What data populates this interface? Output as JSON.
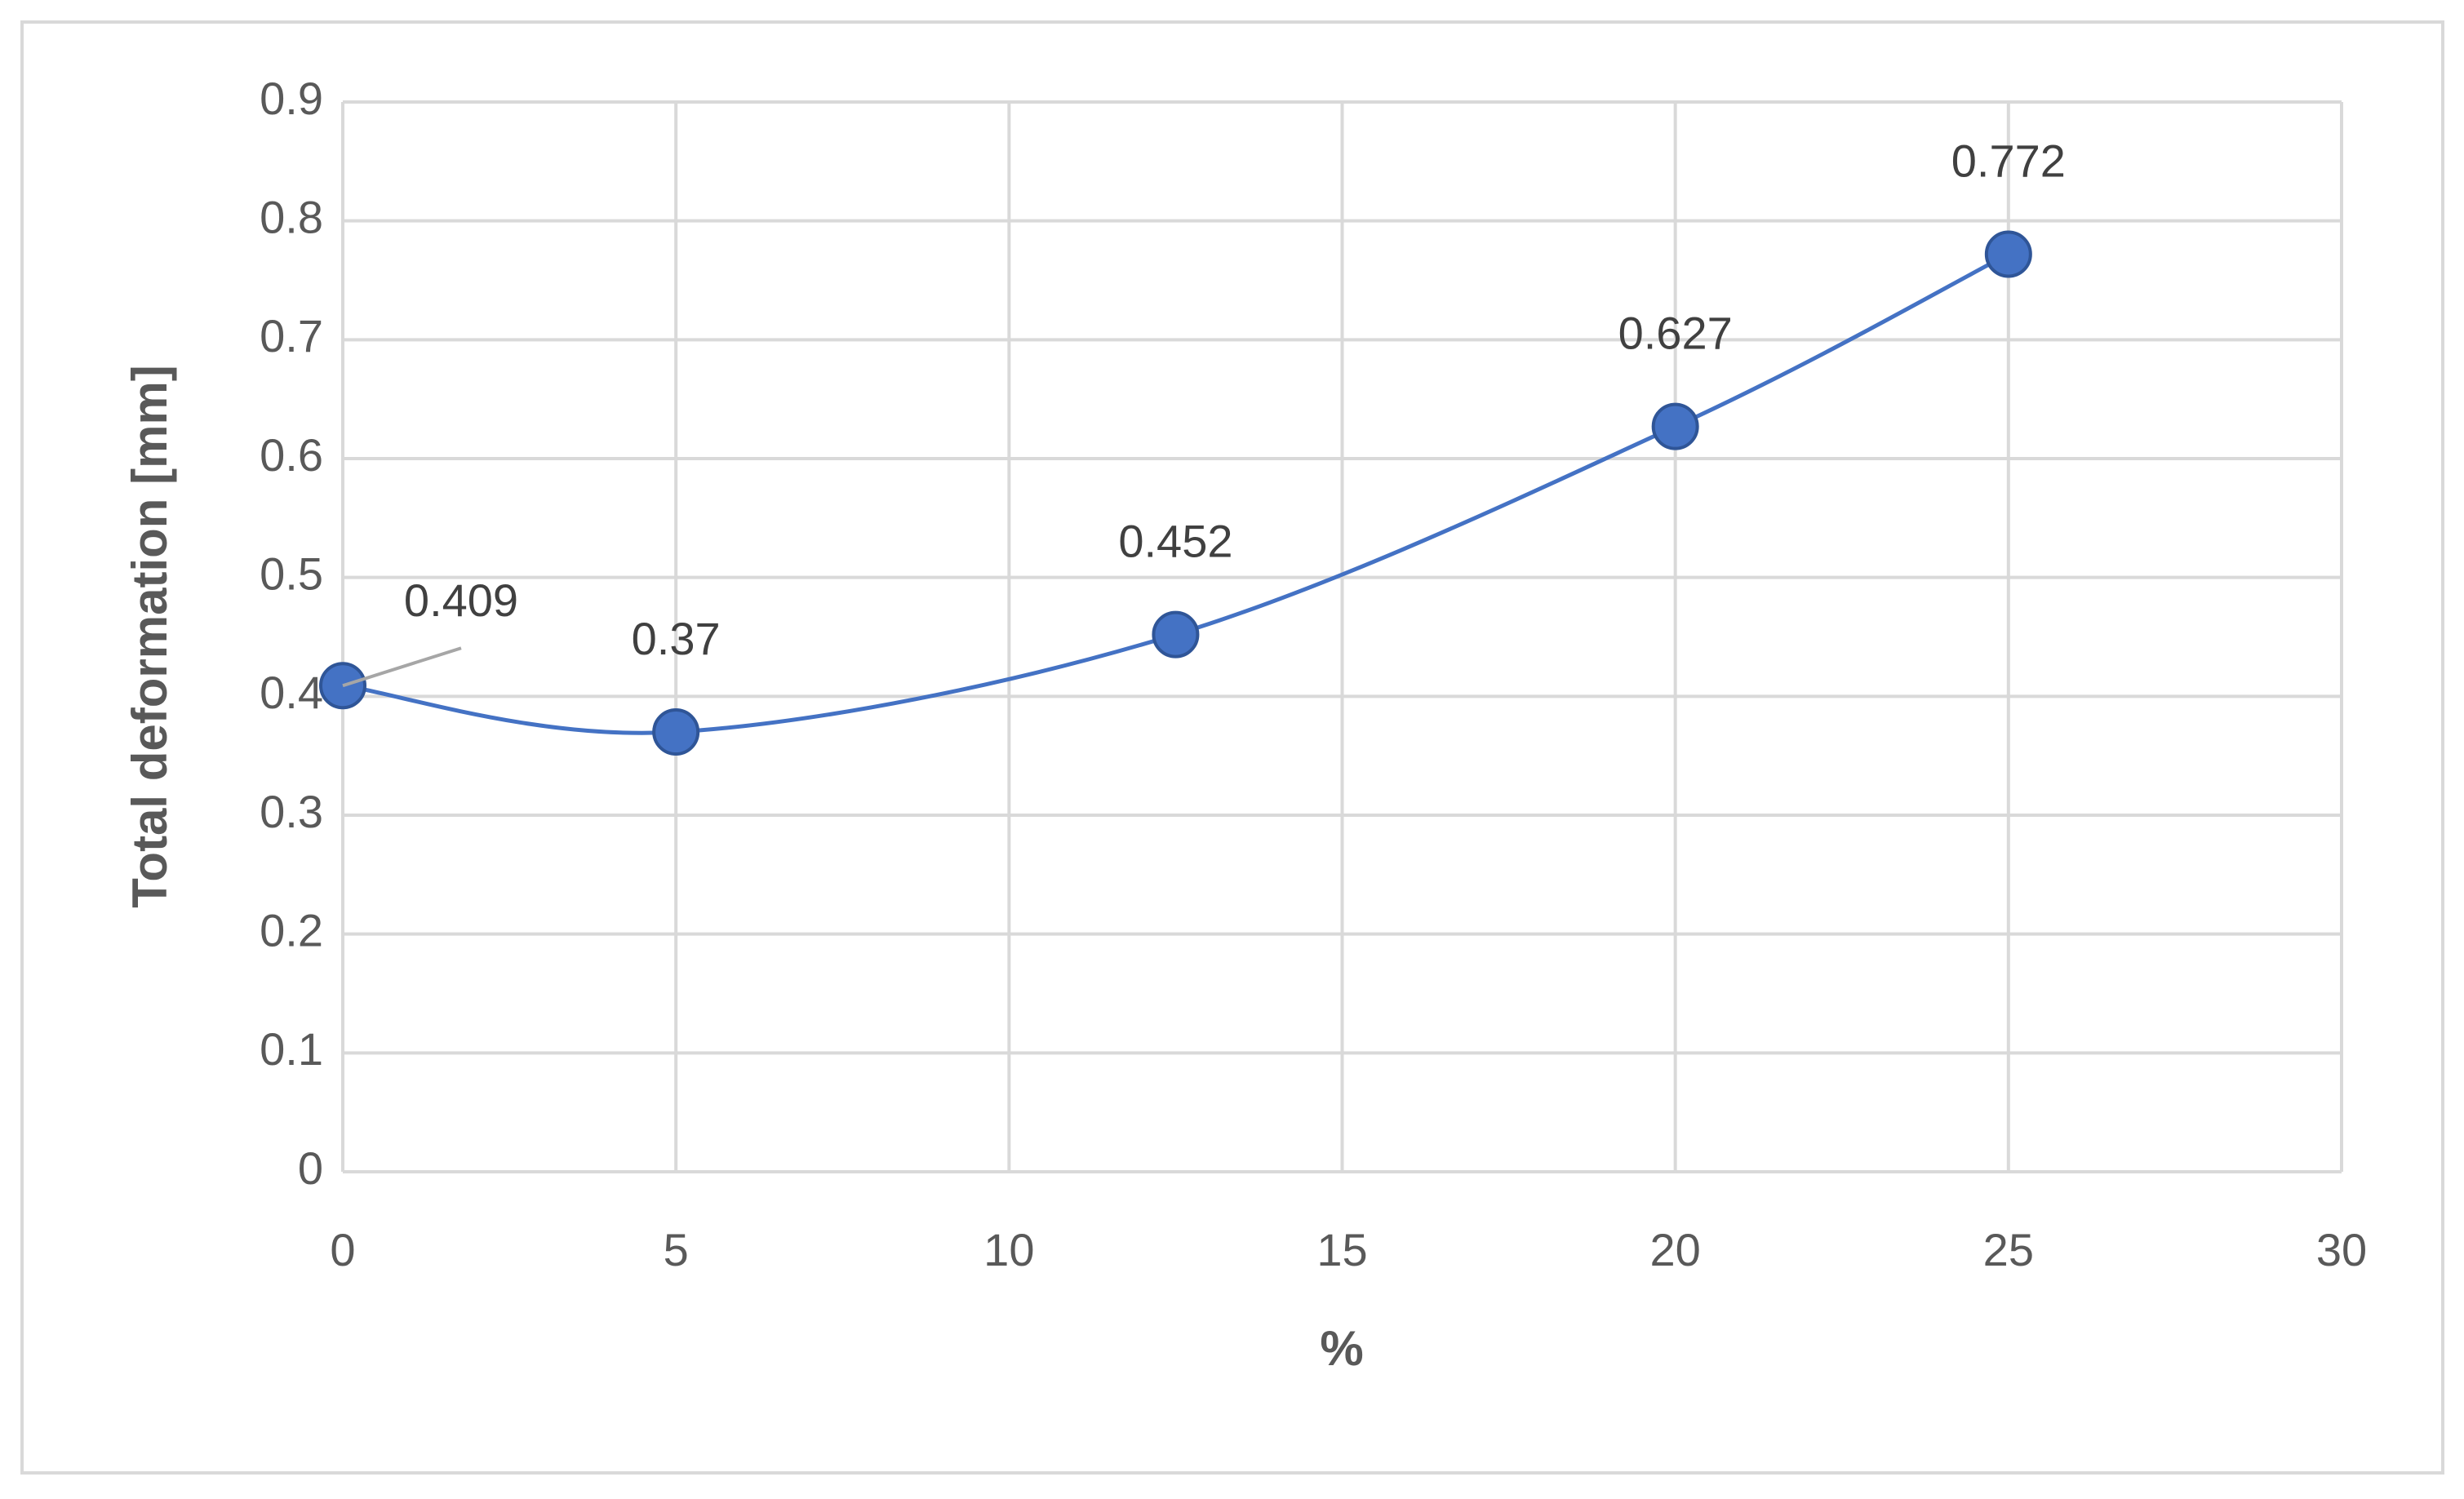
{
  "chart_data": {
    "type": "scatter",
    "smooth": true,
    "x_label": "%",
    "y_label": "Total deformation [mm]",
    "x": [
      0,
      5,
      12.5,
      20,
      25
    ],
    "values": [
      0.409,
      0.37,
      0.452,
      0.627,
      0.772
    ],
    "color": "#4472c4",
    "xlim": [
      0,
      30
    ],
    "xticks": [
      0,
      5,
      10,
      15,
      20,
      25,
      30
    ],
    "ylim": [
      0,
      0.9
    ],
    "yticks": [
      0,
      0.1,
      0.2,
      0.3,
      0.4,
      0.5,
      0.6,
      0.7,
      0.8,
      0.9
    ],
    "grid": true
  }
}
